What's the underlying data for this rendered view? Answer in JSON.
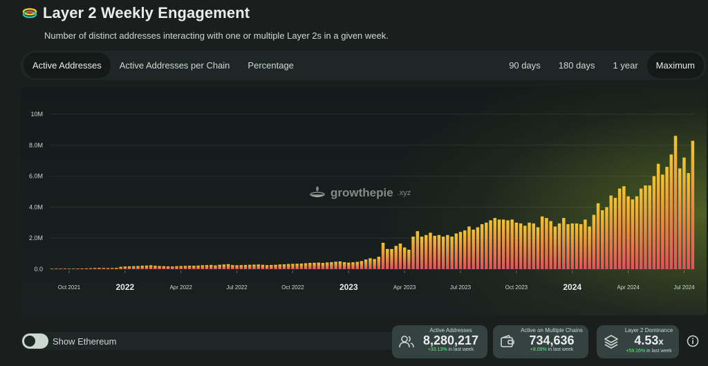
{
  "header": {
    "title": "Layer 2 Weekly Engagement",
    "subtitle": "Number of distinct addresses interacting with one or multiple Layer 2s in a given week."
  },
  "tabs": {
    "left": [
      "Active Addresses",
      "Active Addresses per Chain",
      "Percentage"
    ],
    "left_active": 0,
    "right": [
      "90 days",
      "180 days",
      "1 year",
      "Maximum"
    ],
    "right_active": 3
  },
  "watermark": {
    "brand": "growthepie",
    "suffix": ".xyz"
  },
  "toggle": {
    "label": "Show Ethereum",
    "on": false
  },
  "stats": [
    {
      "title": "Active Addresses",
      "value": "8,280,217",
      "unit": "",
      "change": "+33.13%",
      "change_suffix": "in last week",
      "icon": "users-icon"
    },
    {
      "title": "Active on Multiple Chains",
      "value": "734,636",
      "unit": "",
      "change": "+8.09%",
      "change_suffix": "in last week",
      "icon": "wallet-icon"
    },
    {
      "title": "Layer 2 Dominance",
      "value": "4.53",
      "unit": "x",
      "change": "+59.16%",
      "change_suffix": "in last week",
      "icon": "layers-icon"
    }
  ],
  "colors": {
    "background": "#1a1f1e",
    "bar_top": "#f2c52b",
    "bar_bottom": "#e3515b",
    "positive": "#4cff7e"
  },
  "chart_data": {
    "type": "bar",
    "title": "",
    "xlabel": "",
    "ylabel": "",
    "ylim": [
      0,
      10000000
    ],
    "y_ticks": [
      0,
      2000000,
      4000000,
      6000000,
      8000000,
      10000000
    ],
    "y_tick_labels": [
      "0.0",
      "2.0M",
      "4.0M",
      "6.0M",
      "8.0M",
      "10M"
    ],
    "x_ticks": [
      {
        "label": "Oct 2021",
        "index": 4,
        "major": false
      },
      {
        "label": "2022",
        "index": 17,
        "major": true
      },
      {
        "label": "Apr 2022",
        "index": 30,
        "major": false
      },
      {
        "label": "Jul 2022",
        "index": 43,
        "major": false
      },
      {
        "label": "Oct 2022",
        "index": 56,
        "major": false
      },
      {
        "label": "2023",
        "index": 69,
        "major": true
      },
      {
        "label": "Apr 2023",
        "index": 82,
        "major": false
      },
      {
        "label": "Jul 2023",
        "index": 95,
        "major": false
      },
      {
        "label": "Oct 2023",
        "index": 108,
        "major": false
      },
      {
        "label": "2024",
        "index": 121,
        "major": true
      },
      {
        "label": "Apr 2024",
        "index": 134,
        "major": false
      },
      {
        "label": "Jul 2024",
        "index": 147,
        "major": false
      }
    ],
    "series": [
      {
        "values": [
          20000,
          22000,
          25000,
          30000,
          32000,
          35000,
          40000,
          45000,
          50000,
          60000,
          70000,
          80000,
          70000,
          65000,
          70000,
          80000,
          150000,
          170000,
          180000,
          190000,
          200000,
          220000,
          230000,
          250000,
          220000,
          200000,
          190000,
          180000,
          170000,
          190000,
          200000,
          210000,
          220000,
          220000,
          230000,
          250000,
          260000,
          270000,
          240000,
          280000,
          300000,
          320000,
          260000,
          250000,
          260000,
          270000,
          280000,
          290000,
          300000,
          280000,
          260000,
          270000,
          280000,
          300000,
          310000,
          330000,
          340000,
          350000,
          360000,
          380000,
          400000,
          410000,
          420000,
          400000,
          430000,
          450000,
          480000,
          500000,
          450000,
          420000,
          440000,
          470000,
          520000,
          620000,
          700000,
          650000,
          800000,
          1700000,
          1300000,
          1300000,
          1500000,
          1650000,
          1400000,
          1250000,
          2100000,
          2450000,
          2100000,
          2200000,
          2350000,
          2150000,
          2200000,
          2100000,
          2200000,
          2100000,
          2300000,
          2400000,
          2500000,
          2750000,
          2550000,
          2700000,
          2900000,
          3000000,
          3150000,
          3300000,
          3200000,
          3200000,
          3150000,
          3200000,
          3000000,
          2950000,
          2800000,
          3000000,
          2950000,
          2700000,
          3400000,
          3300000,
          3100000,
          2750000,
          2950000,
          3300000,
          2900000,
          2950000,
          2950000,
          2900000,
          3200000,
          2750000,
          3500000,
          4250000,
          3800000,
          4000000,
          4750000,
          4600000,
          5200000,
          5350000,
          4700000,
          4500000,
          4700000,
          5200000,
          5400000,
          5400000,
          6000000,
          6800000,
          6100000,
          6600000,
          7400000,
          8600000,
          6500000,
          7200000,
          6200000,
          8280000
        ]
      }
    ]
  }
}
